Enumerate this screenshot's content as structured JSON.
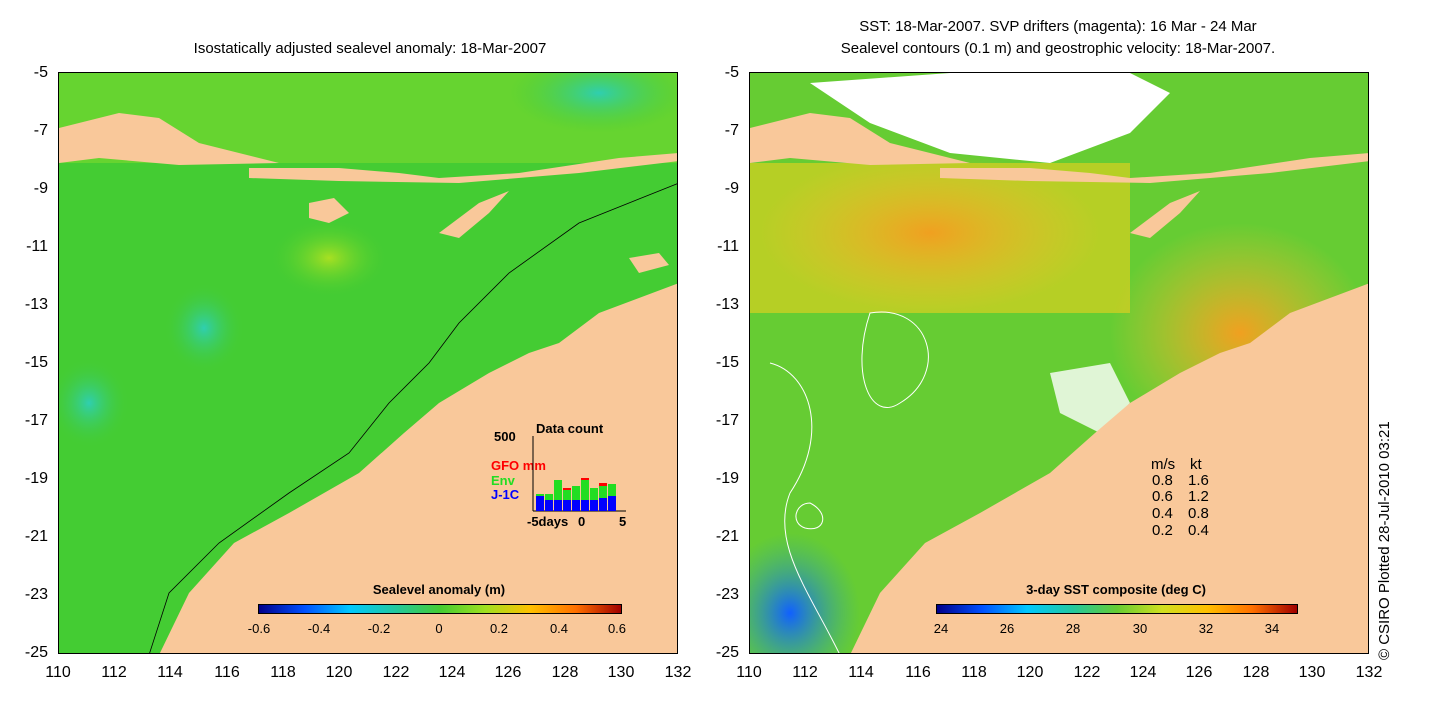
{
  "left_panel": {
    "title": "Isostatically adjusted sealevel anomaly: 18-Mar-2007",
    "colorbar": {
      "title": "Sealevel anomaly (m)",
      "labels": [
        "-0.6",
        "-0.4",
        "-0.2",
        "0",
        "0.2",
        "0.4",
        "0.6"
      ]
    },
    "inset": {
      "max_label": "500",
      "title": "Data count",
      "series": [
        "GFO mm",
        "Env",
        "J-1C"
      ],
      "series_colors": [
        "#ff0000",
        "#22dd22",
        "#0000ff"
      ],
      "x_labels": [
        "-5days",
        "0",
        "5"
      ]
    }
  },
  "right_panel": {
    "title_line1": "SST: 18-Mar-2007. SVP drifters (magenta): 16 Mar - 24 Mar",
    "title_line2": "Sealevel contours (0.1 m) and geostrophic velocity: 18-Mar-2007.",
    "colorbar": {
      "title": "3-day SST composite (deg C)",
      "labels": [
        "24",
        "26",
        "28",
        "30",
        "32",
        "34"
      ]
    },
    "velocity_legend": {
      "header_ms": "m/s",
      "header_kt": "kt",
      "rows": [
        {
          "ms": "0.8",
          "kt": "1.6"
        },
        {
          "ms": "0.6",
          "kt": "1.2"
        },
        {
          "ms": "0.4",
          "kt": "0.8"
        },
        {
          "ms": "0.2",
          "kt": "0.4"
        }
      ]
    }
  },
  "axes": {
    "y_ticks": [
      "-5",
      "-7",
      "-9",
      "-11",
      "-13",
      "-15",
      "-17",
      "-19",
      "-21",
      "-23",
      "-25"
    ],
    "x_ticks": [
      "110",
      "112",
      "114",
      "116",
      "118",
      "120",
      "122",
      "124",
      "126",
      "128",
      "130",
      "132"
    ]
  },
  "copyright": "© CSIRO Plotted 28-Jul-2010 03:21",
  "colors": {
    "land": "#f9c89a",
    "sealevel_base": "#44cc33",
    "sst_base": "#66cc33"
  }
}
